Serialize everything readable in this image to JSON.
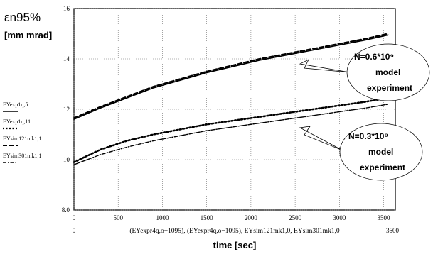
{
  "chart_data": {
    "type": "line",
    "ylabel_main": "εn95%",
    "ylabel_unit": "[mm mrad]",
    "xlabel_expression": "(EYexpr4q,o−1095), (EYexpr4q,o−1095), EYsim121mk1,0, EYsim301mk1,0",
    "xlabel": "time [sec]",
    "xlim": [
      0,
      3600
    ],
    "ylim": [
      8,
      16
    ],
    "x_ticks": [
      0,
      500,
      1000,
      1500,
      2000,
      2500,
      3000,
      3500
    ],
    "y_ticks": [
      8,
      10,
      12,
      14,
      16
    ],
    "x_tick_labels": [
      "0",
      "500",
      "1000",
      "1500",
      "2000",
      "2500",
      "3000",
      "3500"
    ],
    "y_tick_labels": [
      "8.0",
      "10",
      "12",
      "14",
      "16"
    ],
    "x_min_label": "0",
    "x_max_label": "3600",
    "grid": true,
    "legend_position": "left",
    "legend": [
      {
        "label": "EYexp1q,5",
        "style": "solid"
      },
      {
        "label": "EYexp1q,11",
        "style": "dotted"
      },
      {
        "label": "EYsim121mk1,1",
        "style": "dashed"
      },
      {
        "label": "EYsim301mk1,1",
        "style": "dash-dot"
      }
    ],
    "series": [
      {
        "style": "solid",
        "x": [
          0,
          300,
          600,
          900,
          1200,
          1500,
          1800,
          2100,
          2400,
          2700,
          3000,
          3300,
          3550
        ],
        "y": [
          11.6,
          12.05,
          12.45,
          12.85,
          13.15,
          13.45,
          13.7,
          13.95,
          14.15,
          14.35,
          14.55,
          14.75,
          14.95
        ]
      },
      {
        "style": "dotted",
        "x": [
          0,
          300,
          600,
          900,
          1200,
          1500,
          1800,
          2100,
          2400,
          2700,
          3000,
          3300,
          3550
        ],
        "y": [
          9.9,
          10.4,
          10.75,
          11.0,
          11.2,
          11.4,
          11.55,
          11.7,
          11.85,
          12.0,
          12.15,
          12.3,
          12.45
        ]
      },
      {
        "style": "dashed",
        "x": [
          0,
          300,
          600,
          900,
          1200,
          1500,
          1800,
          2100,
          2400,
          2700,
          3000,
          3300,
          3550
        ],
        "y": [
          11.65,
          12.1,
          12.5,
          12.9,
          13.2,
          13.5,
          13.75,
          14.0,
          14.2,
          14.4,
          14.6,
          14.8,
          15.0
        ]
      },
      {
        "style": "dash-dot",
        "x": [
          0,
          300,
          600,
          900,
          1200,
          1500,
          1800,
          2100,
          2400,
          2700,
          3000,
          3300,
          3550
        ],
        "y": [
          9.8,
          10.2,
          10.5,
          10.75,
          10.95,
          11.15,
          11.3,
          11.45,
          11.6,
          11.75,
          11.9,
          12.05,
          12.2
        ]
      }
    ],
    "annotations": [
      {
        "title": "N=0.6*10⁹",
        "line1": "model",
        "line2": "experiment"
      },
      {
        "title": "N=0.3*10⁹",
        "line1": "model",
        "line2": "experiment"
      }
    ]
  }
}
